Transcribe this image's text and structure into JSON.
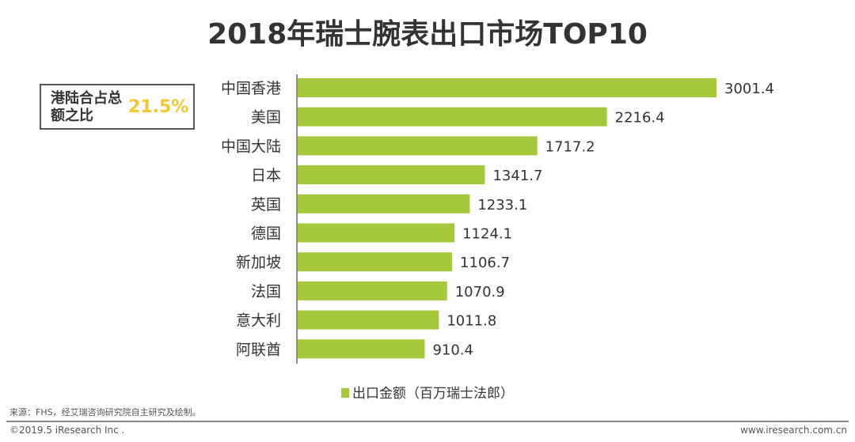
{
  "chart_data": {
    "type": "bar",
    "orientation": "horizontal",
    "title": "2018年瑞士腕表出口市场TOP10",
    "categories": [
      "中国香港",
      "美国",
      "中国大陆",
      "日本",
      "英国",
      "德国",
      "新加坡",
      "法国",
      "意大利",
      "阿联酋"
    ],
    "series": [
      {
        "name": "出口金额（百万瑞士法郎）",
        "values": [
          3001.4,
          2216.4,
          1717.2,
          1341.7,
          1233.1,
          1124.1,
          1106.7,
          1070.9,
          1011.8,
          910.4
        ]
      }
    ],
    "data_labels": [
      "3001.4",
      "2216.4",
      "1717.2",
      "1341.7",
      "1233.1",
      "1124.1",
      "1106.7",
      "1070.9",
      "1011.8",
      "910.4"
    ],
    "legend_position": "bottom",
    "grid": false,
    "bar_color": "#a5c93a"
  },
  "callout": {
    "label": "港陆合占总额之比",
    "value": "21.5%",
    "value_color": "#f2c730"
  },
  "footer": {
    "source": "来源：FHS，经艾瑞咨询研究院自主研究及绘制。",
    "copyright": "©2019.5 iResearch Inc .",
    "website": "www.iresearch.com.cn"
  }
}
